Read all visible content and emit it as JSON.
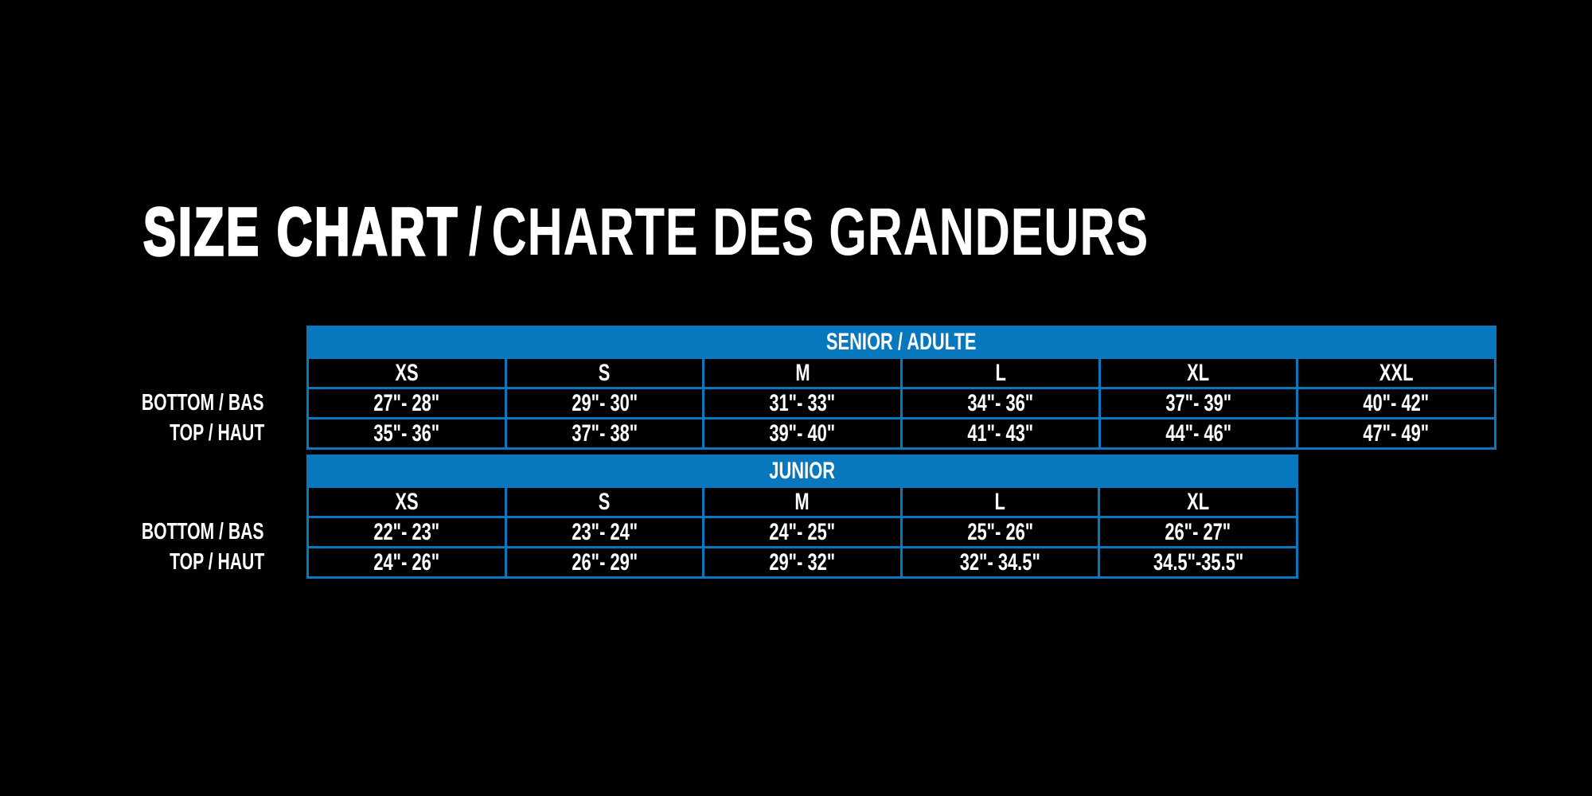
{
  "title": {
    "primary": "SIZE CHART",
    "separator": "/",
    "secondary": "CHARTE DES GRANDEURS"
  },
  "colors": {
    "background": "#000000",
    "accent_blue": "#0778BE",
    "text": "#FFFFFF"
  },
  "chart_data": [
    {
      "type": "table",
      "title": "SENIOR / ADULTE",
      "columns": [
        "XS",
        "S",
        "M",
        "L",
        "XL",
        "XXL"
      ],
      "row_labels": [
        "BOTTOM / BAS",
        "TOP / HAUT"
      ],
      "rows": [
        [
          "27\"- 28\"",
          "29\"- 30\"",
          "31\"- 33\"",
          "34\"- 36\"",
          "37\"- 39\"",
          "40\"- 42\""
        ],
        [
          "35\"- 36\"",
          "37\"- 38\"",
          "39\"- 40\"",
          "41\"- 43\"",
          "44\"- 46\"",
          "47\"- 49\""
        ]
      ]
    },
    {
      "type": "table",
      "title": "JUNIOR",
      "columns": [
        "XS",
        "S",
        "M",
        "L",
        "XL"
      ],
      "row_labels": [
        "BOTTOM / BAS",
        "TOP / HAUT"
      ],
      "rows": [
        [
          "22\"- 23\"",
          "23\"- 24\"",
          "24\"- 25\"",
          "25\"- 26\"",
          "26\"- 27\""
        ],
        [
          "24\"- 26\"",
          "26\"- 29\"",
          "29\"- 32\"",
          "32\"- 34.5\"",
          "34.5\"-35.5\""
        ]
      ]
    }
  ]
}
